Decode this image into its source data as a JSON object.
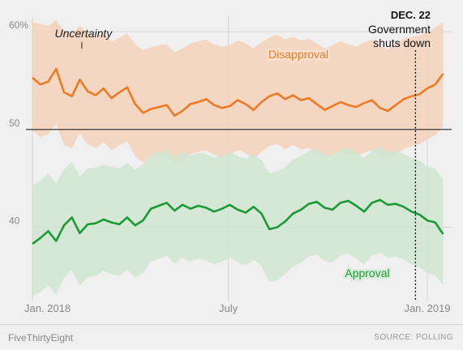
{
  "chart_data": {
    "type": "line",
    "ylim": [
      33,
      62
    ],
    "yticks": [
      {
        "v": 40,
        "label": "40"
      },
      {
        "v": 50,
        "label": "50"
      },
      {
        "v": 60,
        "label": "60%"
      }
    ],
    "xticks": [
      {
        "t": 0,
        "label": "Jan. 2018"
      },
      {
        "t": 0.496,
        "label": "July"
      },
      {
        "t": 1,
        "label": "Jan. 2019"
      }
    ],
    "reference_line": 50,
    "series": [
      {
        "name": "Disapproval",
        "color": "#ef7a24",
        "band_color": "#f5d2bb",
        "t": [
          0,
          0.02,
          0.04,
          0.06,
          0.08,
          0.1,
          0.12,
          0.14,
          0.16,
          0.18,
          0.2,
          0.22,
          0.24,
          0.26,
          0.28,
          0.3,
          0.32,
          0.34,
          0.36,
          0.38,
          0.4,
          0.42,
          0.44,
          0.46,
          0.48,
          0.5,
          0.52,
          0.54,
          0.56,
          0.58,
          0.6,
          0.62,
          0.64,
          0.66,
          0.68,
          0.7,
          0.72,
          0.74,
          0.76,
          0.78,
          0.8,
          0.82,
          0.84,
          0.86,
          0.88,
          0.9,
          0.92,
          0.94,
          0.96,
          0.98,
          1.0,
          1.02,
          1.04
        ],
        "values": [
          55.3,
          54.6,
          54.9,
          56.2,
          53.8,
          53.4,
          55.1,
          53.9,
          53.5,
          54.2,
          53.2,
          53.8,
          54.3,
          52.6,
          51.7,
          52.1,
          52.3,
          52.5,
          51.4,
          51.9,
          52.6,
          52.8,
          53.1,
          52.5,
          52.2,
          52.4,
          53.0,
          52.6,
          52.0,
          52.8,
          53.4,
          53.7,
          53.1,
          53.5,
          53.0,
          53.2,
          52.6,
          52.0,
          52.4,
          52.8,
          52.5,
          52.3,
          52.7,
          53.0,
          52.2,
          51.9,
          52.5,
          53.1,
          53.4,
          53.6,
          54.2,
          54.6,
          55.7
        ],
        "upper": [
          61.0,
          60.8,
          60.6,
          61.2,
          60.1,
          59.8,
          60.6,
          59.9,
          59.5,
          59.9,
          59.0,
          59.4,
          59.8,
          58.7,
          58.1,
          58.4,
          58.6,
          58.7,
          57.9,
          58.3,
          58.8,
          59.0,
          59.2,
          58.7,
          58.5,
          58.6,
          59.1,
          58.8,
          58.3,
          58.9,
          59.4,
          59.7,
          59.2,
          59.5,
          59.1,
          59.3,
          58.8,
          58.3,
          58.6,
          59.0,
          58.7,
          58.5,
          58.9,
          59.2,
          58.5,
          58.2,
          58.8,
          59.3,
          59.5,
          59.6,
          60.0,
          60.4,
          61.0
        ],
        "lower": [
          49.9,
          49.2,
          49.5,
          50.6,
          48.4,
          48.1,
          49.6,
          48.5,
          48.1,
          48.7,
          47.9,
          48.4,
          48.8,
          47.3,
          46.6,
          46.9,
          47.2,
          47.4,
          46.5,
          46.9,
          47.5,
          47.7,
          47.9,
          47.4,
          47.1,
          47.4,
          47.9,
          47.6,
          47.0,
          47.7,
          48.3,
          48.5,
          48.0,
          48.4,
          48.0,
          48.1,
          47.6,
          47.0,
          47.4,
          47.7,
          47.5,
          47.3,
          47.6,
          47.9,
          47.2,
          46.9,
          47.4,
          48.0,
          48.3,
          48.5,
          49.0,
          49.4,
          50.3
        ]
      },
      {
        "name": "Approval",
        "color": "#1a9a35",
        "band_color": "#cfe6d0",
        "t": [
          0,
          0.02,
          0.04,
          0.06,
          0.08,
          0.1,
          0.12,
          0.14,
          0.16,
          0.18,
          0.2,
          0.22,
          0.24,
          0.26,
          0.28,
          0.3,
          0.32,
          0.34,
          0.36,
          0.38,
          0.4,
          0.42,
          0.44,
          0.46,
          0.48,
          0.5,
          0.52,
          0.54,
          0.56,
          0.58,
          0.6,
          0.62,
          0.64,
          0.66,
          0.68,
          0.7,
          0.72,
          0.74,
          0.76,
          0.78,
          0.8,
          0.82,
          0.84,
          0.86,
          0.88,
          0.9,
          0.92,
          0.94,
          0.96,
          0.98,
          1.0,
          1.02,
          1.04
        ],
        "values": [
          38.3,
          38.9,
          39.6,
          38.6,
          40.2,
          41.0,
          39.4,
          40.3,
          40.4,
          40.8,
          40.5,
          40.3,
          41.0,
          40.2,
          40.7,
          41.9,
          42.2,
          42.5,
          41.7,
          42.3,
          41.9,
          42.2,
          42.0,
          41.6,
          41.9,
          42.3,
          41.8,
          41.5,
          42.1,
          41.4,
          39.8,
          40.0,
          40.6,
          41.4,
          41.8,
          42.4,
          42.6,
          42.0,
          41.8,
          42.5,
          42.7,
          42.2,
          41.6,
          42.5,
          42.8,
          42.3,
          42.4,
          42.1,
          41.6,
          41.3,
          40.7,
          40.5,
          39.3
        ],
        "upper": [
          44.2,
          44.8,
          45.5,
          44.5,
          45.9,
          46.7,
          45.2,
          46.0,
          46.1,
          46.4,
          46.2,
          46.0,
          46.6,
          45.9,
          46.4,
          47.4,
          47.7,
          47.9,
          47.2,
          47.7,
          47.4,
          47.6,
          47.5,
          47.1,
          47.3,
          47.7,
          47.3,
          47.0,
          47.5,
          46.9,
          45.5,
          45.7,
          46.2,
          46.9,
          47.3,
          47.8,
          48.0,
          47.5,
          47.3,
          47.9,
          48.1,
          47.6,
          47.1,
          47.9,
          48.2,
          47.7,
          47.8,
          47.5,
          47.1,
          46.8,
          46.2,
          46.0,
          44.9
        ],
        "lower": [
          32.9,
          33.4,
          34.0,
          33.1,
          34.8,
          35.6,
          34.0,
          34.9,
          35.0,
          35.5,
          35.2,
          35.0,
          35.7,
          34.9,
          35.3,
          36.5,
          36.8,
          37.1,
          36.3,
          36.9,
          36.5,
          36.8,
          36.6,
          36.2,
          36.5,
          36.9,
          36.4,
          36.1,
          36.7,
          36.0,
          34.4,
          34.6,
          35.2,
          36.0,
          36.4,
          37.0,
          37.2,
          36.6,
          36.4,
          37.1,
          37.3,
          36.8,
          36.2,
          37.1,
          37.4,
          36.9,
          37.0,
          36.7,
          36.2,
          35.9,
          35.3,
          35.1,
          34.0
        ]
      }
    ],
    "annotations": {
      "uncertainty": "Uncertainty",
      "event_date": "DEC. 22",
      "event_line1": "Government",
      "event_line2": "shuts down",
      "event_t": 0.97,
      "uncertainty_t": 0.125
    },
    "grid": true
  },
  "footer": {
    "brand": "FiveThirtyEight",
    "source": "SOURCE: POLLING"
  }
}
